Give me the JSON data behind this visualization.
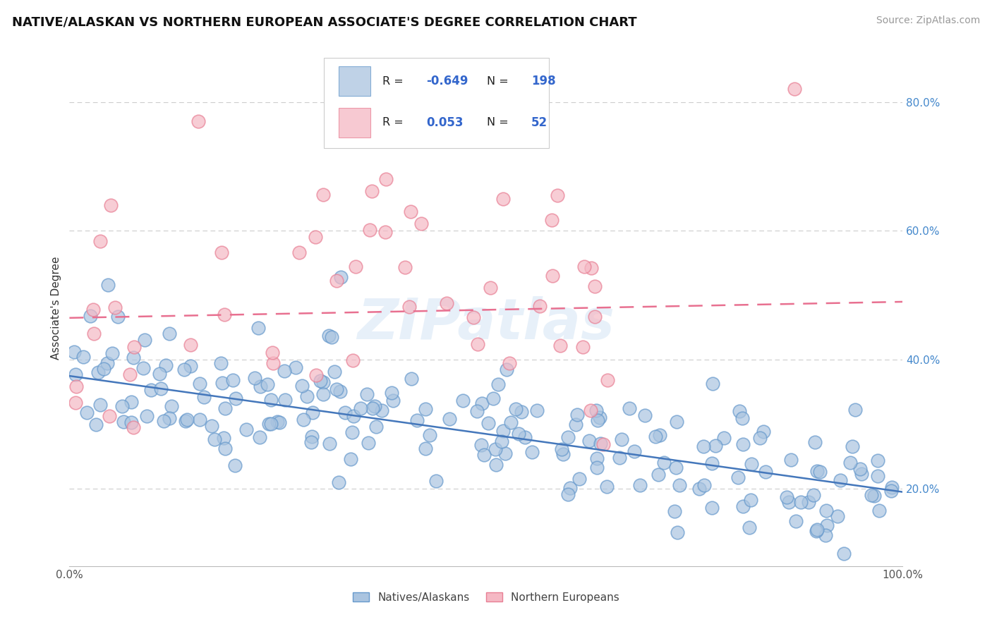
{
  "title": "NATIVE/ALASKAN VS NORTHERN EUROPEAN ASSOCIATE'S DEGREE CORRELATION CHART",
  "source": "Source: ZipAtlas.com",
  "ylabel": "Associate's Degree",
  "xlim": [
    0.0,
    1.0
  ],
  "ylim": [
    0.08,
    0.88
  ],
  "x_tick_labels": [
    "0.0%",
    "100.0%"
  ],
  "y_tick_labels": [
    "20.0%",
    "40.0%",
    "60.0%",
    "80.0%"
  ],
  "y_tick_values": [
    0.2,
    0.4,
    0.6,
    0.8
  ],
  "background_color": "#ffffff",
  "grid_color": "#cccccc",
  "watermark": "ZIPatlas",
  "blue_color": "#aac4e0",
  "blue_edge_color": "#6699cc",
  "pink_color": "#f5b8c4",
  "pink_edge_color": "#e87f94",
  "blue_line_color": "#4477bb",
  "pink_line_color": "#e87090",
  "legend_blue_label": "Natives/Alaskans",
  "legend_pink_label": "Northern Europeans",
  "R_blue": -0.649,
  "N_blue": 198,
  "R_pink": 0.053,
  "N_pink": 52,
  "title_fontsize": 13,
  "axis_label_fontsize": 11,
  "tick_fontsize": 11,
  "legend_fontsize": 11,
  "source_fontsize": 10,
  "blue_line_start_y": 0.375,
  "blue_line_end_y": 0.195,
  "pink_line_start_y": 0.465,
  "pink_line_end_y": 0.49
}
